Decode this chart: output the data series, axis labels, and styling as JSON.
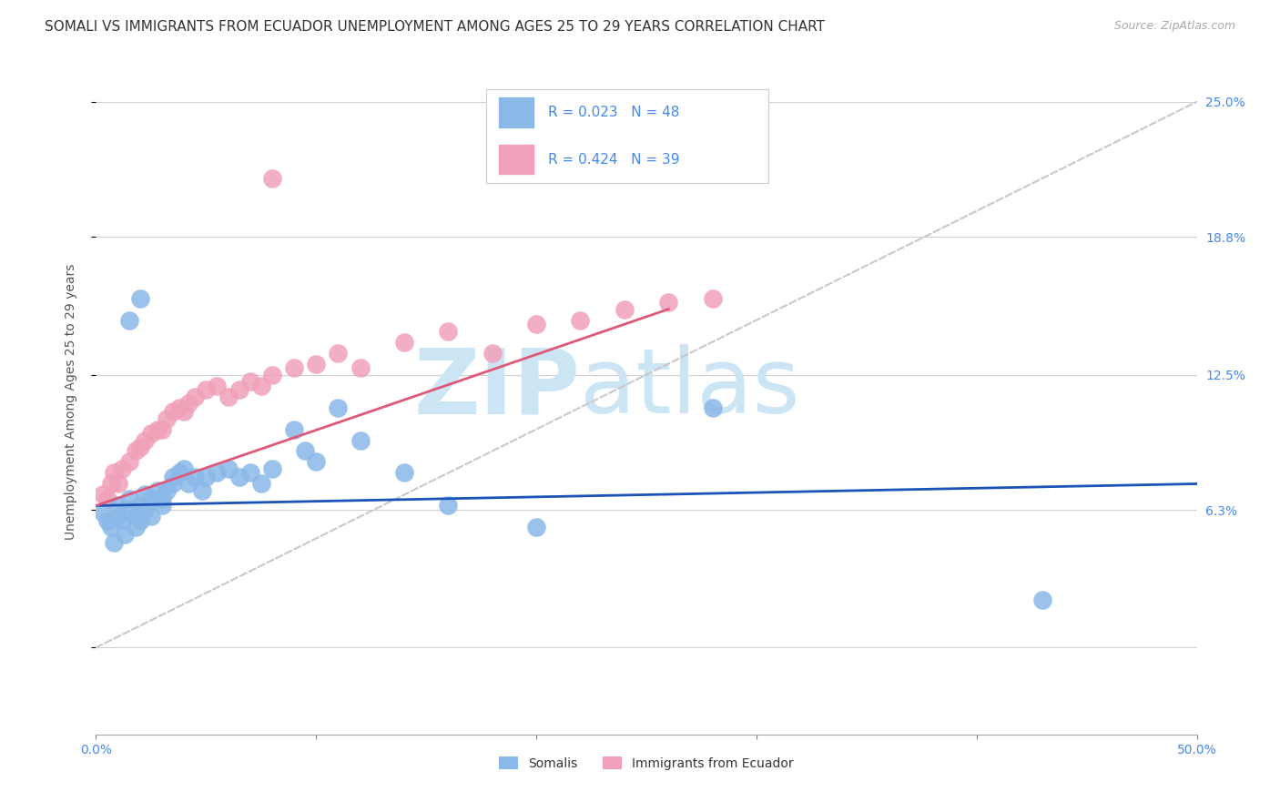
{
  "title": "SOMALI VS IMMIGRANTS FROM ECUADOR UNEMPLOYMENT AMONG AGES 25 TO 29 YEARS CORRELATION CHART",
  "source": "Source: ZipAtlas.com",
  "ylabel": "Unemployment Among Ages 25 to 29 years",
  "xlim": [
    0.0,
    0.5
  ],
  "ylim": [
    -0.04,
    0.265
  ],
  "ytick_positions": [
    0.0,
    0.063,
    0.125,
    0.188,
    0.25
  ],
  "ytick_labels": [
    "",
    "6.3%",
    "12.5%",
    "18.8%",
    "25.0%"
  ],
  "grid_color": "#d0d0d0",
  "background_color": "#ffffff",
  "somali_color": "#8ab8e8",
  "ecuador_color": "#f0a0b8",
  "somali_R": 0.023,
  "somali_N": 48,
  "ecuador_R": 0.424,
  "ecuador_N": 39,
  "legend_labels": [
    "Somalis",
    "Immigrants from Ecuador"
  ],
  "somali_scatter_x": [
    0.003,
    0.005,
    0.007,
    0.008,
    0.01,
    0.01,
    0.012,
    0.013,
    0.015,
    0.015,
    0.018,
    0.018,
    0.02,
    0.02,
    0.022,
    0.022,
    0.025,
    0.025,
    0.028,
    0.03,
    0.03,
    0.032,
    0.035,
    0.035,
    0.038,
    0.04,
    0.042,
    0.045,
    0.048,
    0.05,
    0.055,
    0.06,
    0.065,
    0.07,
    0.075,
    0.08,
    0.09,
    0.095,
    0.1,
    0.11,
    0.12,
    0.14,
    0.16,
    0.2,
    0.28,
    0.43,
    0.015,
    0.02
  ],
  "somali_scatter_y": [
    0.062,
    0.058,
    0.055,
    0.048,
    0.06,
    0.065,
    0.058,
    0.052,
    0.063,
    0.068,
    0.06,
    0.055,
    0.065,
    0.058,
    0.063,
    0.07,
    0.06,
    0.068,
    0.072,
    0.065,
    0.068,
    0.072,
    0.075,
    0.078,
    0.08,
    0.082,
    0.075,
    0.078,
    0.072,
    0.078,
    0.08,
    0.082,
    0.078,
    0.08,
    0.075,
    0.082,
    0.1,
    0.09,
    0.085,
    0.11,
    0.095,
    0.08,
    0.065,
    0.055,
    0.11,
    0.022,
    0.15,
    0.16
  ],
  "ecuador_scatter_x": [
    0.003,
    0.005,
    0.007,
    0.008,
    0.01,
    0.012,
    0.015,
    0.018,
    0.02,
    0.022,
    0.025,
    0.028,
    0.03,
    0.032,
    0.035,
    0.038,
    0.04,
    0.042,
    0.045,
    0.05,
    0.055,
    0.06,
    0.065,
    0.07,
    0.075,
    0.08,
    0.09,
    0.1,
    0.11,
    0.12,
    0.14,
    0.16,
    0.18,
    0.2,
    0.22,
    0.24,
    0.26,
    0.28,
    0.08
  ],
  "ecuador_scatter_y": [
    0.07,
    0.068,
    0.075,
    0.08,
    0.075,
    0.082,
    0.085,
    0.09,
    0.092,
    0.095,
    0.098,
    0.1,
    0.1,
    0.105,
    0.108,
    0.11,
    0.108,
    0.112,
    0.115,
    0.118,
    0.12,
    0.115,
    0.118,
    0.122,
    0.12,
    0.125,
    0.128,
    0.13,
    0.135,
    0.128,
    0.14,
    0.145,
    0.135,
    0.148,
    0.15,
    0.155,
    0.158,
    0.16,
    0.215
  ],
  "watermark_zip": "ZIP",
  "watermark_atlas": "atlas",
  "watermark_color": "#cce5f5",
  "watermark_fontsize": 72,
  "title_fontsize": 11,
  "axis_label_fontsize": 10,
  "tick_fontsize": 10,
  "source_fontsize": 9,
  "somali_line_color": "#1a52b8",
  "ecuador_line_color": "#e05878",
  "diagonal_color": "#c8c8c8",
  "tick_color": "#4488ee"
}
